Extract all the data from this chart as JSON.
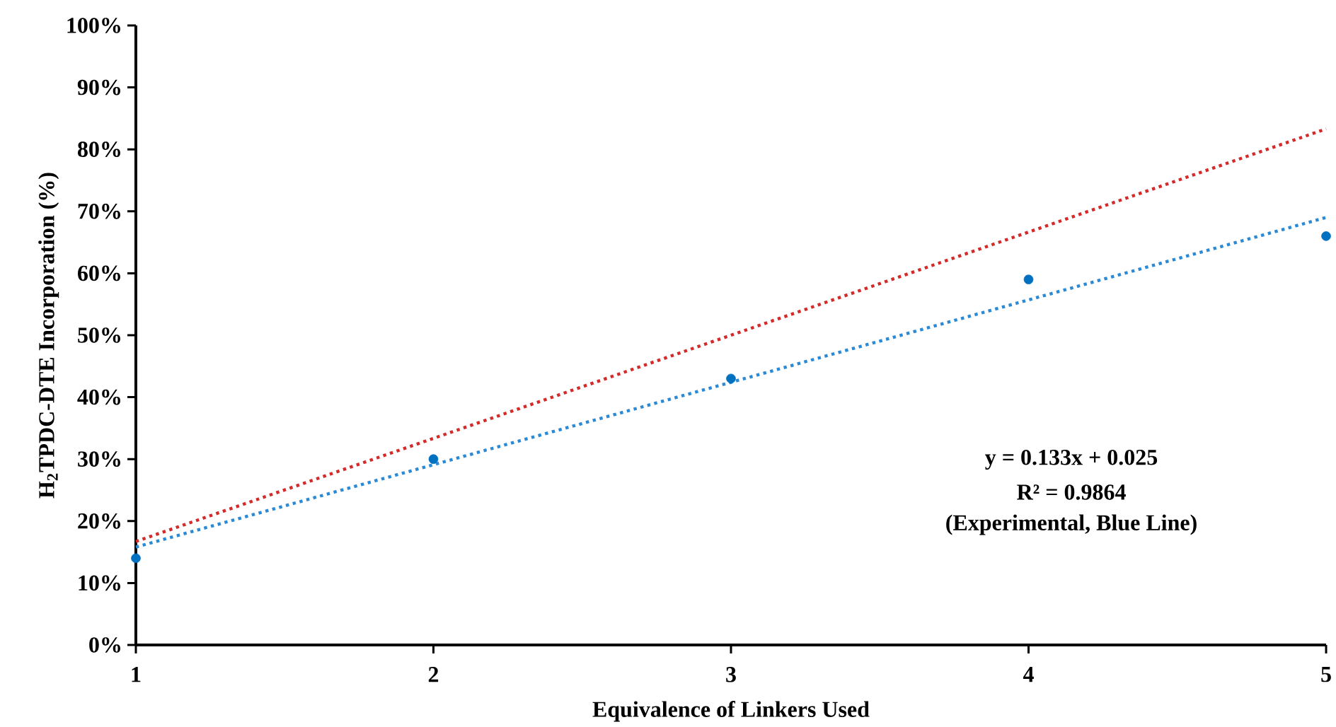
{
  "chart_data": {
    "type": "scatter",
    "xlabel": "Equivalence of Linkers Used",
    "ylabel": "H$_{2}$TPDC-DTE Incorporation (%)",
    "xlim": [
      1,
      5
    ],
    "xticks": [
      1,
      2,
      3,
      4,
      5
    ],
    "ylim": [
      0,
      100
    ],
    "yticks": [
      {
        "value": 0,
        "label": "0%"
      },
      {
        "value": 10,
        "label": "10%"
      },
      {
        "value": 20,
        "label": "20%"
      },
      {
        "value": 30,
        "label": "30%"
      },
      {
        "value": 40,
        "label": "40%"
      },
      {
        "value": 50,
        "label": "50%"
      },
      {
        "value": 60,
        "label": "60%"
      },
      {
        "value": 70,
        "label": "70%"
      },
      {
        "value": 80,
        "label": "80%"
      },
      {
        "value": 90,
        "label": "90%"
      },
      {
        "value": 100,
        "label": "100%"
      }
    ],
    "series": [
      {
        "type": "line",
        "line_style": "dotted",
        "marker": "none",
        "color": "#d42a2a",
        "x": [
          1,
          5
        ],
        "values": [
          16.7,
          83.3
        ]
      },
      {
        "type": "line",
        "line_style": "dotted",
        "marker": "none",
        "color": "#2b8ad6",
        "x": [
          1,
          5
        ],
        "values": [
          15.8,
          69.0
        ]
      },
      {
        "marker": "circle",
        "color": "#0070c0",
        "x": [
          1,
          2,
          3,
          4,
          5
        ],
        "values": [
          14,
          30,
          43,
          59,
          66
        ]
      }
    ],
    "annotations": [
      "y = 0.133x + 0.025",
      "R² = 0.9864",
      "(Experimental, Blue Line)"
    ]
  }
}
